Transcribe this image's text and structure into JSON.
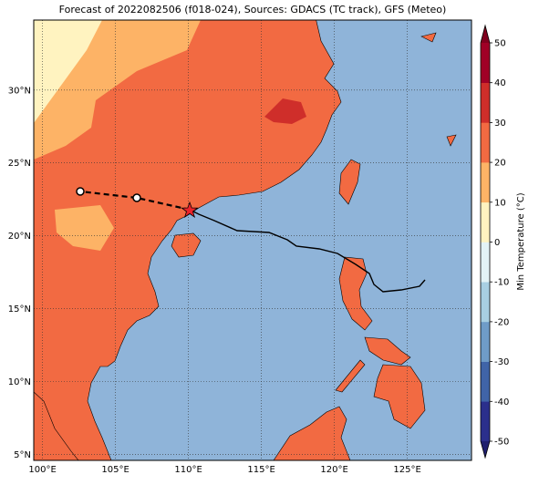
{
  "title": "Forecast of 2022082506 (f018-024), Sources: GDACS (TC track), GFS (Meteo)",
  "map": {
    "xlim": [
      99.4,
      129.4
    ],
    "ylim": [
      4.6,
      34.8
    ],
    "xticks": [
      {
        "value": 100,
        "label": "100°E"
      },
      {
        "value": 105,
        "label": "105°E"
      },
      {
        "value": 110,
        "label": "110°E"
      },
      {
        "value": 115,
        "label": "115°E"
      },
      {
        "value": 120,
        "label": "120°E"
      },
      {
        "value": 125,
        "label": "125°E"
      }
    ],
    "yticks": [
      {
        "value": 5,
        "label": "5°N"
      },
      {
        "value": 10,
        "label": "10°N"
      },
      {
        "value": 15,
        "label": "15°N"
      },
      {
        "value": 20,
        "label": "20°N"
      },
      {
        "value": 25,
        "label": "25°N"
      },
      {
        "value": 30,
        "label": "30°N"
      }
    ],
    "grid": true
  },
  "colorbar": {
    "label": "Min Temperature (°C)",
    "range": [
      -50,
      50
    ],
    "ticks": [
      -50,
      -40,
      -30,
      -20,
      -10,
      0,
      10,
      20,
      30,
      40,
      50
    ],
    "colors": [
      "#2b2f8c",
      "#4064a8",
      "#6f9cc8",
      "#a8cfe2",
      "#e3f3f6",
      "#fff3c0",
      "#fdb366",
      "#f26a42",
      "#cf2e2a",
      "#a00026"
    ],
    "under_color": "#1f1f6e",
    "over_color": "#80001e"
  }
}
